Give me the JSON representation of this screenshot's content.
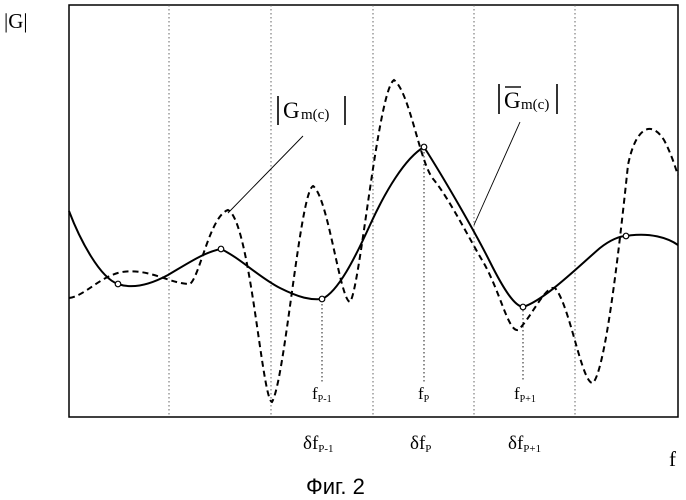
{
  "figure": {
    "y_axis_label": "|G|",
    "x_axis_label": "f",
    "caption": "Фиг. 2"
  },
  "labels": {
    "g_instant": {
      "prefix": "G",
      "sub": "m(c)"
    },
    "g_average": {
      "prefix": "G",
      "sub": "m(c)"
    }
  },
  "ticks": {
    "inner": [
      {
        "base": "f",
        "sub": "P-1"
      },
      {
        "base": "f",
        "sub": "P"
      },
      {
        "base": "f",
        "sub": "P+1"
      }
    ],
    "bands": [
      {
        "base": "δf",
        "sub": "P-1"
      },
      {
        "base": "δf",
        "sub": "P"
      },
      {
        "base": "δf",
        "sub": "P+1"
      }
    ]
  },
  "colors": {
    "ink": "#000000",
    "background": "#ffffff",
    "gridline": "#555555"
  }
}
